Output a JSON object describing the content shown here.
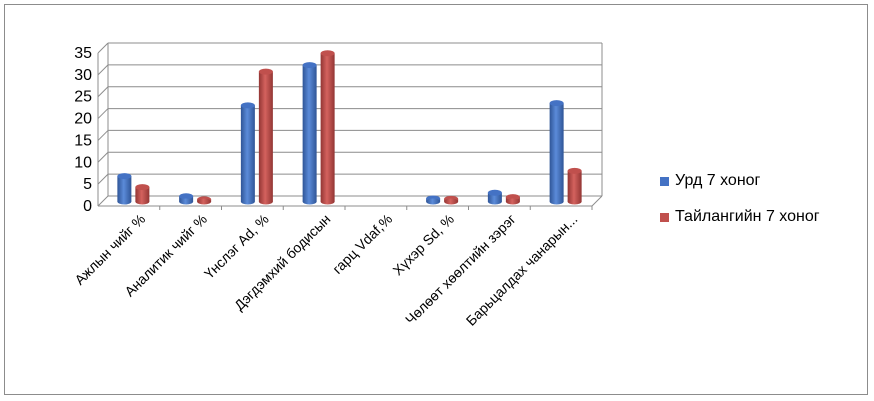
{
  "chart_data": {
    "type": "bar",
    "title": "",
    "xlabel": "",
    "ylabel": "",
    "ylim": [
      0,
      35
    ],
    "yticks": [
      0,
      5,
      10,
      15,
      20,
      25,
      30,
      35
    ],
    "grid": true,
    "legend_position": "right",
    "categories": [
      "Ажлын чийг %",
      "Аналитик чийг %",
      "Үнслэг Ad, %",
      "Дэгдэмхий бодисын",
      "гарц Vdaf,%",
      "Хүхэр Sd, %",
      "Чөлөөт хөөлтийн зэрэг",
      "Барьцалдах чанарын..."
    ],
    "series": [
      {
        "name": "Урд 7 хоног",
        "color": "#4472c4",
        "values": [
          5.8,
          1.2,
          22.0,
          31.2,
          0,
          0.7,
          2.0,
          22.5
        ]
      },
      {
        "name": "Тайлангийн 7 хоног",
        "color": "#c0504d",
        "values": [
          3.3,
          0.5,
          29.7,
          33.9,
          0,
          0.6,
          1.0,
          7.0
        ]
      }
    ]
  }
}
